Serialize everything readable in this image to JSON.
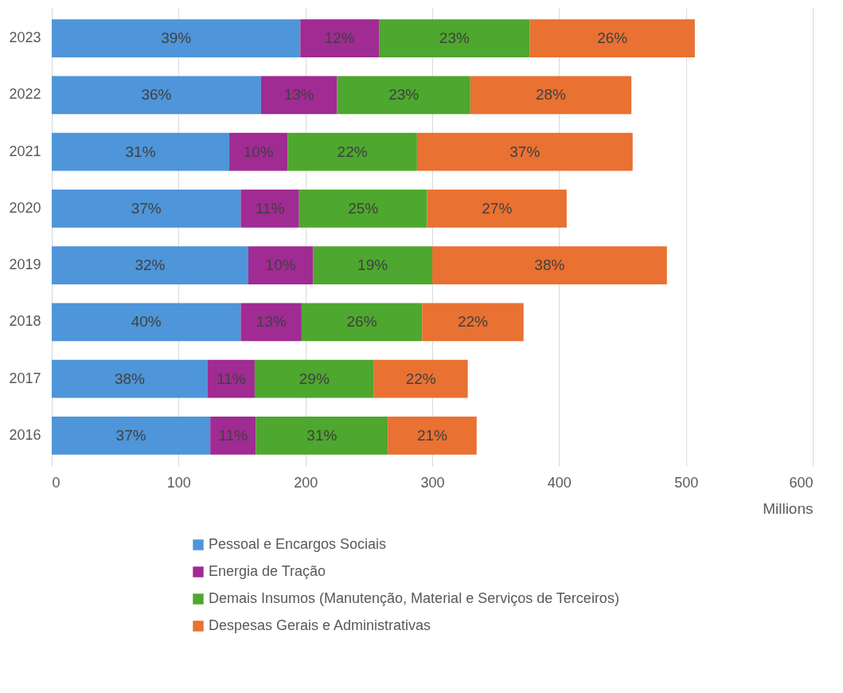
{
  "chart_data": {
    "type": "bar",
    "orientation": "horizontal",
    "stacked": true,
    "categories": [
      "2023",
      "2022",
      "2021",
      "2020",
      "2019",
      "2018",
      "2017",
      "2016"
    ],
    "xlabel": "Millions",
    "xlim": [
      0,
      600
    ],
    "xticks": [
      0,
      100,
      200,
      300,
      400,
      500,
      600
    ],
    "grid": "x",
    "legend": "bottom",
    "series": [
      {
        "name": "Pessoal e Encargos Sociais",
        "color": "#4e95d9",
        "values": [
          196,
          165,
          140,
          149,
          155,
          149,
          123,
          125
        ]
      },
      {
        "name": "Energia de Tração",
        "color": "#a02b93",
        "values": [
          62,
          60,
          46,
          46,
          51,
          48,
          37,
          36
        ]
      },
      {
        "name": "Demais Insumos (Manutenção, Material e Serviços de Terceiros)",
        "color": "#4ea72e",
        "values": [
          119,
          105,
          102,
          101,
          94,
          95,
          94,
          104
        ]
      },
      {
        "name": "Despesas Gerais e Administrativas",
        "color": "#e97132",
        "values": [
          130,
          127,
          170,
          110,
          185,
          80,
          74,
          70
        ]
      }
    ],
    "annotations": [
      "39%",
      "12%",
      "23%",
      "26%",
      "36%",
      "13%",
      "23%",
      "28%",
      "31%",
      "10%",
      "22%",
      "37%",
      "37%",
      "11%",
      "25%",
      "27%",
      "32%",
      "10%",
      "19%",
      "38%",
      "40%",
      "13%",
      "26%",
      "22%",
      "38%",
      "11%",
      "29%",
      "22%",
      "37%",
      "11%",
      "31%",
      "21%"
    ]
  }
}
